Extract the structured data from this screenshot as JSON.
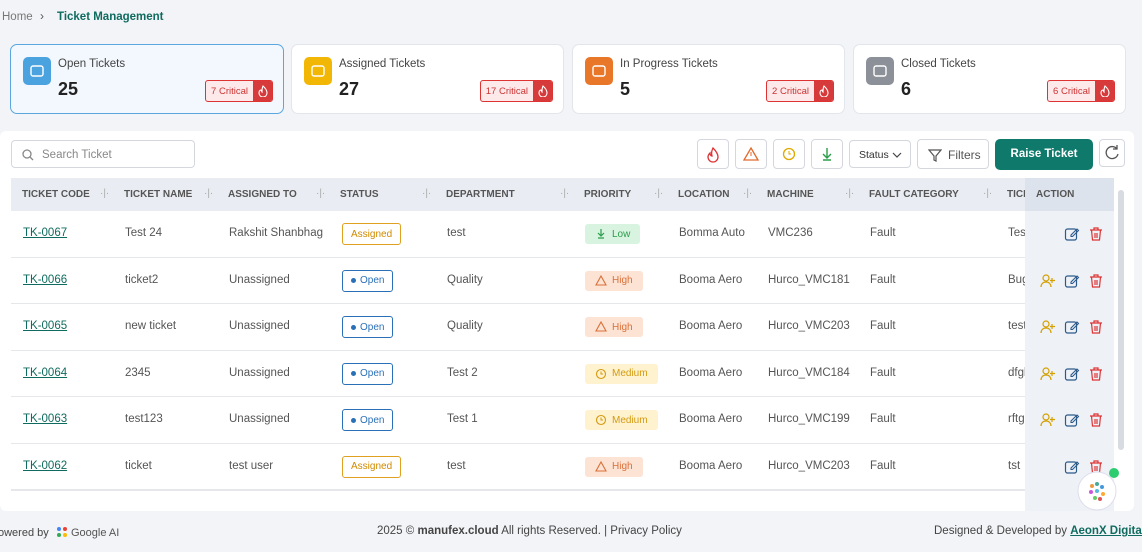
{
  "breadcrumb": {
    "home": "Home",
    "current": "Ticket Management"
  },
  "cards": [
    {
      "title": "Open Tickets",
      "count": 25,
      "critical": "7 Critical"
    },
    {
      "title": "Assigned Tickets",
      "count": 27,
      "critical": "17 Critical"
    },
    {
      "title": "In Progress Tickets",
      "count": 5,
      "critical": "2 Critical"
    },
    {
      "title": "Closed Tickets",
      "count": 6,
      "critical": "6 Critical"
    }
  ],
  "toolbar": {
    "search_placeholder": "Search Ticket",
    "status": "Status",
    "filters": "Filters",
    "raise": "Raise Ticket"
  },
  "table": {
    "columns": [
      "TICKET CODE",
      "TICKET NAME",
      "ASSIGNED TO",
      "STATUS",
      "DEPARTMENT",
      "PRIORITY",
      "LOCATION",
      "MACHINE",
      "FAULT CATEGORY",
      "TICK",
      "ACTION"
    ],
    "rows": [
      [
        "TK-0067",
        "Test 24",
        "Rakshit Shanbhag",
        "Assigned",
        "test",
        "Low",
        "Bomma Auto",
        "VMC236",
        "Fault",
        "Tes"
      ],
      [
        "TK-0066",
        "ticket2",
        "Unassigned",
        "Open",
        "Quality",
        "High",
        "Booma Aero",
        "Hurco_VMC181",
        "Fault",
        "Bug"
      ],
      [
        "TK-0065",
        "new ticket",
        "Unassigned",
        "Open",
        "Quality",
        "High",
        "Booma Aero",
        "Hurco_VMC203",
        "Fault",
        "test"
      ],
      [
        "TK-0064",
        "2345",
        "Unassigned",
        "Open",
        "Test 2",
        "Medium",
        "Booma Aero",
        "Hurco_VMC184",
        "Fault",
        "dfgl"
      ],
      [
        "TK-0063",
        "test123",
        "Unassigned",
        "Open",
        "Test 1",
        "Medium",
        "Booma Aero",
        "Hurco_VMC199",
        "Fault",
        "rftg"
      ],
      [
        "TK-0062",
        "ticket",
        "test user",
        "Assigned",
        "test",
        "High",
        "Booma Aero",
        "Hurco_VMC203",
        "Fault",
        "tst"
      ]
    ]
  },
  "footer": {
    "powered": "owered by",
    "google": "Google AI",
    "year": "2025 ©",
    "brand": "manufex.cloud",
    "rights": "All rights Reserved.",
    "privacy": "Privacy Policy",
    "designed": "Designed & Developed by",
    "company": "AeonX Digital"
  }
}
